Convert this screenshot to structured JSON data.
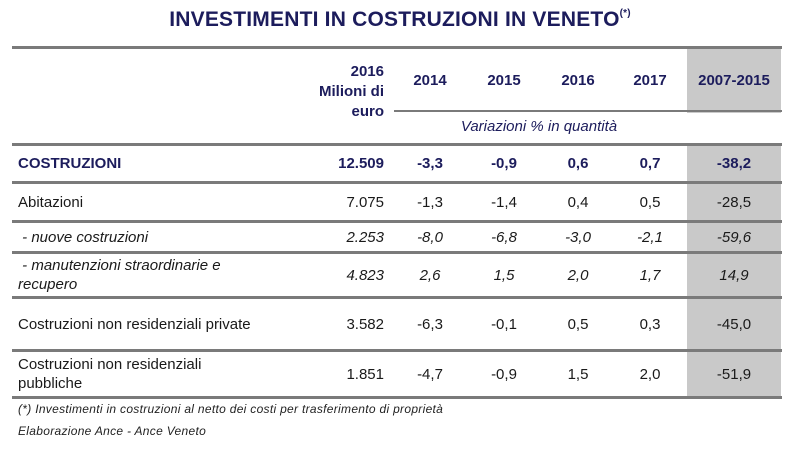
{
  "title": "INVESTIMENTI IN COSTRUZIONI IN VENETO",
  "title_note": "(*)",
  "header": {
    "col_value": [
      "2016",
      "Milioni di",
      "euro"
    ],
    "years": [
      "2014",
      "2015",
      "2016",
      "2017",
      "2007-2015"
    ],
    "subheader": "Variazioni % in quantità"
  },
  "rows": [
    {
      "label": "COSTRUZIONI",
      "value": "12.509",
      "v2014": "-3,3",
      "v2015": "-0,9",
      "v2016": "0,6",
      "v2017": "0,7",
      "v0715": "-38,2",
      "style": "bold"
    },
    {
      "label": "Abitazioni",
      "value": "7.075",
      "v2014": "-1,3",
      "v2015": "-1,4",
      "v2016": "0,4",
      "v2017": "0,5",
      "v0715": "-28,5",
      "style": "normal"
    },
    {
      "label": " - nuove costruzioni",
      "value": "2.253",
      "v2014": "-8,0",
      "v2015": "-6,8",
      "v2016": "-3,0",
      "v2017": "-2,1",
      "v0715": "-59,6",
      "style": "italic"
    },
    {
      "label": " - manutenzioni straordinarie e recupero",
      "label_lines": [
        " - manutenzioni straordinarie e",
        "recupero"
      ],
      "value": "4.823",
      "v2014": "2,6",
      "v2015": "1,5",
      "v2016": "2,0",
      "v2017": "1,7",
      "v0715": "14,9",
      "style": "italic"
    },
    {
      "label": "Costruzioni non residenziali private",
      "value": "3.582",
      "v2014": "-6,3",
      "v2015": "-0,1",
      "v2016": "0,5",
      "v2017": "0,3",
      "v0715": "-45,0",
      "style": "normal"
    },
    {
      "label": "Costruzioni non residenziali pubbliche",
      "label_lines": [
        "Costruzioni non residenziali",
        "pubbliche"
      ],
      "value": "1.851",
      "v2014": "-4,7",
      "v2015": "-0,9",
      "v2016": "1,5",
      "v2017": "2,0",
      "v0715": "-51,9",
      "style": "normal"
    }
  ],
  "footnotes": [
    "(*) Investimenti in costruzioni al netto dei costi per trasferimento di proprietà",
    "Elaborazione Ance - Ance Veneto"
  ],
  "chart_data": {
    "type": "table",
    "title": "INVESTIMENTI IN COSTRUZIONI IN VENETO (*)",
    "columns": [
      "Voce",
      "2016 Milioni di euro",
      "2014",
      "2015",
      "2016",
      "2017",
      "2007-2015"
    ],
    "column_group_label": "Variazioni % in quantità",
    "rows": [
      [
        "COSTRUZIONI",
        12509,
        -3.3,
        -0.9,
        0.6,
        0.7,
        -38.2
      ],
      [
        "Abitazioni",
        7075,
        -1.3,
        -1.4,
        0.4,
        0.5,
        -28.5
      ],
      [
        "- nuove costruzioni",
        2253,
        -8.0,
        -6.8,
        -3.0,
        -2.1,
        -59.6
      ],
      [
        "- manutenzioni straordinarie e recupero",
        4823,
        2.6,
        1.5,
        2.0,
        1.7,
        14.9
      ],
      [
        "Costruzioni non residenziali private",
        3582,
        -6.3,
        -0.1,
        0.5,
        0.3,
        -45.0
      ],
      [
        "Costruzioni non residenziali pubbliche",
        1851,
        -4.7,
        -0.9,
        1.5,
        2.0,
        -51.9
      ]
    ],
    "notes": [
      "(*) Investimenti in costruzioni al netto dei costi per trasferimento di proprietà",
      "Elaborazione Ance - Ance Veneto"
    ]
  }
}
